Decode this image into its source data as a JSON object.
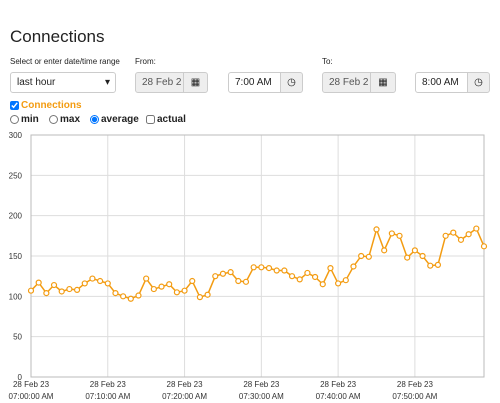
{
  "header": {
    "title": "Connections"
  },
  "form": {
    "range": {
      "label": "Select or enter date/time range",
      "value": "last hour"
    },
    "from": {
      "label": "From:",
      "date": "28 Feb 2",
      "time": "7:00 AM"
    },
    "to": {
      "label": "To:",
      "date": "28 Feb 2",
      "time": "8:00 AM"
    },
    "metric": {
      "label": "Connections",
      "checked": true
    },
    "options": [
      {
        "label": "min",
        "kind": "radio",
        "checked": false
      },
      {
        "label": "max",
        "kind": "radio",
        "checked": false
      },
      {
        "label": "average",
        "kind": "radio",
        "checked": true
      },
      {
        "label": "actual",
        "kind": "checkbox",
        "checked": false
      }
    ]
  },
  "chart_data": {
    "type": "line",
    "grid": true,
    "x": [
      0,
      1,
      2,
      3,
      4,
      5,
      6,
      7,
      8,
      9,
      10,
      11,
      12,
      13,
      14,
      15,
      16,
      17,
      18,
      19,
      20,
      21,
      22,
      23,
      24,
      25,
      26,
      27,
      28,
      29,
      30,
      31,
      32,
      33,
      34,
      35,
      36,
      37,
      38,
      39,
      40,
      41,
      42,
      43,
      44,
      45,
      46,
      47,
      48,
      49,
      50,
      51,
      52,
      53,
      54,
      55,
      56,
      57,
      58,
      59
    ],
    "series": [
      {
        "name": "Connections",
        "color": "#f39c12",
        "values": [
          107,
          117,
          104,
          114,
          106,
          109,
          108,
          116,
          122,
          119,
          116,
          104,
          100,
          97,
          101,
          122,
          109,
          112,
          115,
          105,
          107,
          119,
          99,
          102,
          125,
          128,
          130,
          119,
          118,
          136,
          136,
          135,
          132,
          132,
          125,
          121,
          129,
          124,
          115,
          135,
          116,
          120,
          137,
          150,
          149,
          183,
          157,
          178,
          175,
          148,
          157,
          150,
          138,
          139,
          175,
          179,
          170,
          177,
          184,
          162
        ]
      }
    ],
    "xlim": [
      0,
      59
    ],
    "xticks": [
      {
        "value": 0,
        "date": "28 Feb 23",
        "label": "07:00:00 AM"
      },
      {
        "value": 10,
        "date": "28 Feb 23",
        "label": "07:10:00 AM"
      },
      {
        "value": 20,
        "date": "28 Feb 23",
        "label": "07:20:00 AM"
      },
      {
        "value": 30,
        "date": "28 Feb 23",
        "label": "07:30:00 AM"
      },
      {
        "value": 40,
        "date": "28 Feb 23",
        "label": "07:40:00 AM"
      },
      {
        "value": 50,
        "date": "28 Feb 23",
        "label": "07:50:00 AM"
      }
    ],
    "ylim": [
      0,
      300
    ],
    "yticks": [
      0,
      50,
      100,
      150,
      200,
      250,
      300
    ]
  }
}
